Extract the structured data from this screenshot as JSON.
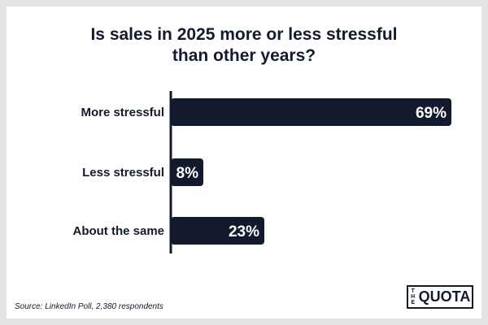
{
  "title_lines": [
    "Is sales in 2025 more or less stressful",
    "than other years?"
  ],
  "source": "Source: LinkedIn Poll, 2,380 respondents",
  "logo": {
    "small": "THE",
    "main": "QUOTA"
  },
  "colors": {
    "bar": "#141a2e",
    "text": "#141a2e",
    "label": "#ffffff"
  },
  "chart_data": {
    "type": "bar",
    "orientation": "horizontal",
    "categories": [
      "More stressful",
      "Less stressful",
      "About the same"
    ],
    "values": [
      69,
      8,
      23
    ],
    "value_labels": [
      "69%",
      "8%",
      "23%"
    ],
    "unit": "%",
    "xlim": [
      0,
      69
    ],
    "grid": false,
    "legend": "none"
  }
}
